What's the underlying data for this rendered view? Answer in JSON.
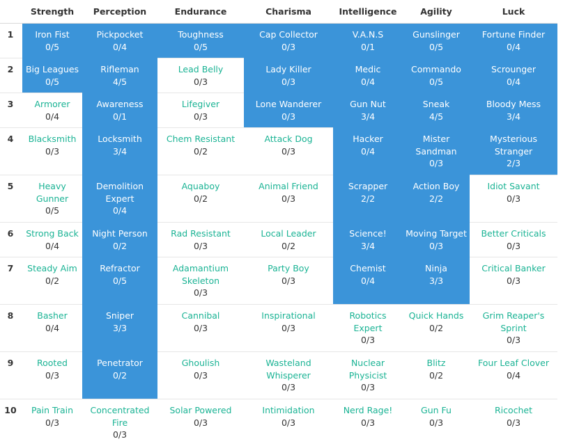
{
  "attributes": [
    "Strength",
    "Perception",
    "Endurance",
    "Charisma",
    "Intelligence",
    "Agility",
    "Luck"
  ],
  "colors": {
    "owned_bg": "#3b94d9",
    "available_text": "#1ab394",
    "level_text": "#333333"
  },
  "rows": [
    {
      "rank": "1",
      "cells": [
        {
          "name": "Iron Fist",
          "level": "0/5",
          "owned": true
        },
        {
          "name": "Pickpocket",
          "level": "0/4",
          "owned": true
        },
        {
          "name": "Toughness",
          "level": "0/5",
          "owned": true
        },
        {
          "name": "Cap Collector",
          "level": "0/3",
          "owned": true
        },
        {
          "name": "V.A.N.S",
          "level": "0/1",
          "owned": true
        },
        {
          "name": "Gunslinger",
          "level": "0/5",
          "owned": true
        },
        {
          "name": "Fortune Finder",
          "level": "0/4",
          "owned": true
        }
      ]
    },
    {
      "rank": "2",
      "cells": [
        {
          "name": "Big Leagues",
          "level": "0/5",
          "owned": true
        },
        {
          "name": "Rifleman",
          "level": "4/5",
          "owned": true
        },
        {
          "name": "Lead Belly",
          "level": "0/3",
          "owned": false
        },
        {
          "name": "Lady Killer",
          "level": "0/3",
          "owned": true
        },
        {
          "name": "Medic",
          "level": "0/4",
          "owned": true
        },
        {
          "name": "Commando",
          "level": "0/5",
          "owned": true
        },
        {
          "name": "Scrounger",
          "level": "0/4",
          "owned": true
        }
      ]
    },
    {
      "rank": "3",
      "cells": [
        {
          "name": "Armorer",
          "level": "0/4",
          "owned": false
        },
        {
          "name": "Awareness",
          "level": "0/1",
          "owned": true
        },
        {
          "name": "Lifegiver",
          "level": "0/3",
          "owned": false
        },
        {
          "name": "Lone Wanderer",
          "level": "0/3",
          "owned": true
        },
        {
          "name": "Gun Nut",
          "level": "3/4",
          "owned": true
        },
        {
          "name": "Sneak",
          "level": "4/5",
          "owned": true
        },
        {
          "name": "Bloody Mess",
          "level": "3/4",
          "owned": true
        }
      ]
    },
    {
      "rank": "4",
      "cells": [
        {
          "name": "Blacksmith",
          "level": "0/3",
          "owned": false
        },
        {
          "name": "Locksmith",
          "level": "3/4",
          "owned": true
        },
        {
          "name": "Chem Resistant",
          "level": "0/2",
          "owned": false
        },
        {
          "name": "Attack Dog",
          "level": "0/3",
          "owned": false
        },
        {
          "name": "Hacker",
          "level": "0/4",
          "owned": true
        },
        {
          "name": "Mister Sandman",
          "level": "0/3",
          "owned": true
        },
        {
          "name": "Mysterious Stranger",
          "level": "2/3",
          "owned": true
        }
      ]
    },
    {
      "rank": "5",
      "cells": [
        {
          "name": "Heavy Gunner",
          "level": "0/5",
          "owned": false
        },
        {
          "name": "Demolition Expert",
          "level": "0/4",
          "owned": true
        },
        {
          "name": "Aquaboy",
          "level": "0/2",
          "owned": false
        },
        {
          "name": "Animal Friend",
          "level": "0/3",
          "owned": false
        },
        {
          "name": "Scrapper",
          "level": "2/2",
          "owned": true
        },
        {
          "name": "Action Boy",
          "level": "2/2",
          "owned": true
        },
        {
          "name": "Idiot Savant",
          "level": "0/3",
          "owned": false
        }
      ]
    },
    {
      "rank": "6",
      "cells": [
        {
          "name": "Strong Back",
          "level": "0/4",
          "owned": false
        },
        {
          "name": "Night Person",
          "level": "0/2",
          "owned": true
        },
        {
          "name": "Rad Resistant",
          "level": "0/3",
          "owned": false
        },
        {
          "name": "Local Leader",
          "level": "0/2",
          "owned": false
        },
        {
          "name": "Science!",
          "level": "3/4",
          "owned": true
        },
        {
          "name": "Moving Target",
          "level": "0/3",
          "owned": true
        },
        {
          "name": "Better Criticals",
          "level": "0/3",
          "owned": false
        }
      ]
    },
    {
      "rank": "7",
      "cells": [
        {
          "name": "Steady Aim",
          "level": "0/2",
          "owned": false
        },
        {
          "name": "Refractor",
          "level": "0/5",
          "owned": true
        },
        {
          "name": "Adamantium Skeleton",
          "level": "0/3",
          "owned": false
        },
        {
          "name": "Party Boy",
          "level": "0/3",
          "owned": false
        },
        {
          "name": "Chemist",
          "level": "0/4",
          "owned": true
        },
        {
          "name": "Ninja",
          "level": "3/3",
          "owned": true
        },
        {
          "name": "Critical Banker",
          "level": "0/3",
          "owned": false
        }
      ]
    },
    {
      "rank": "8",
      "cells": [
        {
          "name": "Basher",
          "level": "0/4",
          "owned": false
        },
        {
          "name": "Sniper",
          "level": "3/3",
          "owned": true
        },
        {
          "name": "Cannibal",
          "level": "0/3",
          "owned": false
        },
        {
          "name": "Inspirational",
          "level": "0/3",
          "owned": false
        },
        {
          "name": "Robotics Expert",
          "level": "0/3",
          "owned": false
        },
        {
          "name": "Quick Hands",
          "level": "0/2",
          "owned": false
        },
        {
          "name": "Grim Reaper's Sprint",
          "level": "0/3",
          "owned": false
        }
      ]
    },
    {
      "rank": "9",
      "cells": [
        {
          "name": "Rooted",
          "level": "0/3",
          "owned": false
        },
        {
          "name": "Penetrator",
          "level": "0/2",
          "owned": true
        },
        {
          "name": "Ghoulish",
          "level": "0/3",
          "owned": false
        },
        {
          "name": "Wasteland Whisperer",
          "level": "0/3",
          "owned": false
        },
        {
          "name": "Nuclear Physicist",
          "level": "0/3",
          "owned": false
        },
        {
          "name": "Blitz",
          "level": "0/2",
          "owned": false
        },
        {
          "name": "Four Leaf Clover",
          "level": "0/4",
          "owned": false
        }
      ]
    },
    {
      "rank": "10",
      "cells": [
        {
          "name": "Pain Train",
          "level": "0/3",
          "owned": false
        },
        {
          "name": "Concentrated Fire",
          "level": "0/3",
          "owned": false
        },
        {
          "name": "Solar Powered",
          "level": "0/3",
          "owned": false
        },
        {
          "name": "Intimidation",
          "level": "0/3",
          "owned": false
        },
        {
          "name": "Nerd Rage!",
          "level": "0/3",
          "owned": false
        },
        {
          "name": "Gun Fu",
          "level": "0/3",
          "owned": false
        },
        {
          "name": "Ricochet",
          "level": "0/3",
          "owned": false
        }
      ]
    }
  ]
}
